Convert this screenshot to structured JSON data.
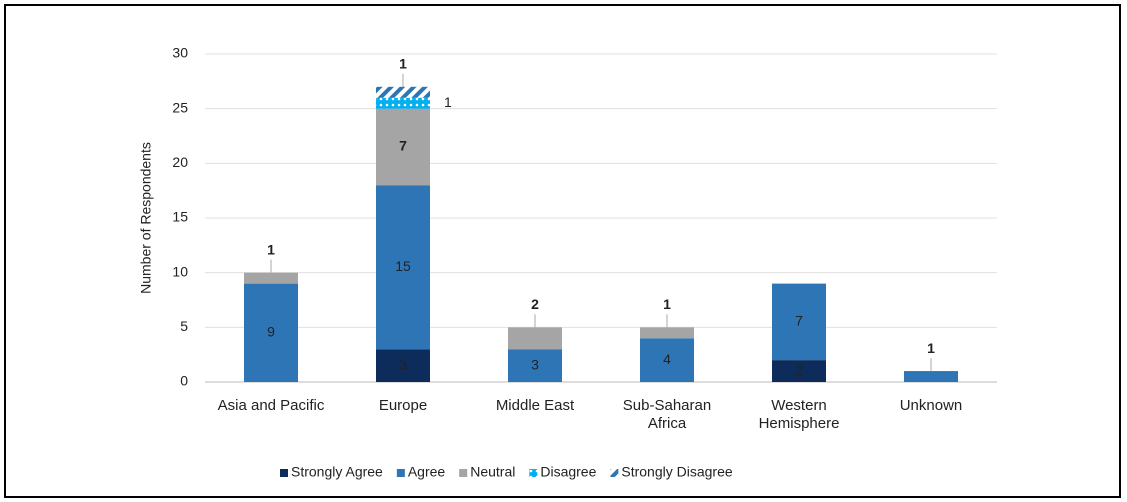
{
  "chart_data": {
    "type": "stacked_bar",
    "y_axis_label": "Number of Respondents",
    "categories": [
      "Asia and Pacific",
      "Europe",
      "Middle East",
      "Sub-Saharan Africa",
      "Western Hemisphere",
      "Unknown"
    ],
    "series": [
      {
        "name": "Strongly Agree",
        "color": "#0d2b5b",
        "values": [
          0,
          3,
          0,
          0,
          2,
          0
        ]
      },
      {
        "name": "Agree",
        "color": "#2e75b6",
        "values": [
          9,
          15,
          3,
          4,
          7,
          1
        ]
      },
      {
        "name": "Neutral",
        "color": "#a5a5a5",
        "values": [
          1,
          7,
          2,
          1,
          0,
          0
        ]
      },
      {
        "name": "Disagree",
        "color": "#00b0f0",
        "pattern": "dots",
        "values": [
          0,
          1,
          0,
          0,
          0,
          0
        ]
      },
      {
        "name": "Strongly Disagree",
        "color": "#2e75b6",
        "pattern": "hatch",
        "values": [
          0,
          1,
          0,
          0,
          0,
          0
        ]
      }
    ],
    "ylim": [
      0,
      30
    ],
    "yticks": [
      0,
      5,
      10,
      15,
      20,
      25,
      30
    ],
    "grid": true,
    "legend": "bottom"
  }
}
